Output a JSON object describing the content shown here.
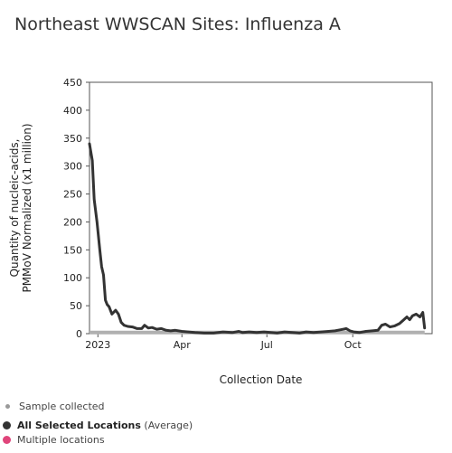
{
  "chart_data": {
    "type": "line",
    "title": "Northeast WWSCAN Sites: Influenza A",
    "xlabel": "Collection Date",
    "ylabel_lines": [
      "Quantity of nucleic-acids,",
      "PMMoV Normalized (x1 million)"
    ],
    "ylim": [
      0,
      450
    ],
    "yticks": [
      0,
      50,
      100,
      150,
      200,
      250,
      300,
      350,
      400,
      450
    ],
    "xlim": [
      "2022-12-23",
      "2023-12-25"
    ],
    "xticks": [
      {
        "date": "2023-01-01",
        "label": "2023"
      },
      {
        "date": "2023-04-01",
        "label": "Apr"
      },
      {
        "date": "2023-07-01",
        "label": "Jul"
      },
      {
        "date": "2023-10-01",
        "label": "Oct"
      }
    ],
    "grid": false,
    "series": [
      {
        "name": "All Selected Locations",
        "color": "#333333",
        "points": [
          [
            "2022-12-23",
            340
          ],
          [
            "2022-12-24",
            330
          ],
          [
            "2022-12-26",
            310
          ],
          [
            "2022-12-28",
            240
          ],
          [
            "2022-12-31",
            200
          ],
          [
            "2023-01-03",
            150
          ],
          [
            "2023-01-05",
            120
          ],
          [
            "2023-01-07",
            105
          ],
          [
            "2023-01-09",
            60
          ],
          [
            "2023-01-11",
            52
          ],
          [
            "2023-01-13",
            48
          ],
          [
            "2023-01-16",
            35
          ],
          [
            "2023-01-20",
            42
          ],
          [
            "2023-01-23",
            35
          ],
          [
            "2023-01-26",
            20
          ],
          [
            "2023-01-29",
            15
          ],
          [
            "2023-02-02",
            13
          ],
          [
            "2023-02-07",
            12
          ],
          [
            "2023-02-12",
            9
          ],
          [
            "2023-02-17",
            9
          ],
          [
            "2023-02-20",
            15
          ],
          [
            "2023-02-24",
            10
          ],
          [
            "2023-02-28",
            11
          ],
          [
            "2023-03-05",
            8
          ],
          [
            "2023-03-10",
            9
          ],
          [
            "2023-03-15",
            6
          ],
          [
            "2023-03-20",
            5
          ],
          [
            "2023-03-25",
            6
          ],
          [
            "2023-04-01",
            4
          ],
          [
            "2023-04-08",
            3
          ],
          [
            "2023-04-15",
            2
          ],
          [
            "2023-04-25",
            1
          ],
          [
            "2023-05-05",
            1
          ],
          [
            "2023-05-15",
            3
          ],
          [
            "2023-05-25",
            2
          ],
          [
            "2023-06-01",
            4
          ],
          [
            "2023-06-05",
            2
          ],
          [
            "2023-06-12",
            3
          ],
          [
            "2023-06-20",
            2
          ],
          [
            "2023-06-28",
            3
          ],
          [
            "2023-07-05",
            2
          ],
          [
            "2023-07-12",
            1
          ],
          [
            "2023-07-20",
            3
          ],
          [
            "2023-07-28",
            2
          ],
          [
            "2023-08-05",
            1
          ],
          [
            "2023-08-12",
            3
          ],
          [
            "2023-08-20",
            2
          ],
          [
            "2023-08-28",
            3
          ],
          [
            "2023-09-05",
            4
          ],
          [
            "2023-09-12",
            5
          ],
          [
            "2023-09-18",
            7
          ],
          [
            "2023-09-24",
            9
          ],
          [
            "2023-09-28",
            5
          ],
          [
            "2023-10-02",
            3
          ],
          [
            "2023-10-08",
            2
          ],
          [
            "2023-10-15",
            4
          ],
          [
            "2023-10-22",
            5
          ],
          [
            "2023-10-28",
            6
          ],
          [
            "2023-11-01",
            15
          ],
          [
            "2023-11-05",
            17
          ],
          [
            "2023-11-10",
            12
          ],
          [
            "2023-11-15",
            14
          ],
          [
            "2023-11-20",
            18
          ],
          [
            "2023-11-24",
            24
          ],
          [
            "2023-11-28",
            30
          ],
          [
            "2023-12-01",
            25
          ],
          [
            "2023-12-04",
            32
          ],
          [
            "2023-12-08",
            35
          ],
          [
            "2023-12-12",
            30
          ],
          [
            "2023-12-15",
            38
          ],
          [
            "2023-12-17",
            10
          ]
        ]
      }
    ],
    "samples_band": {
      "color": "#b0b0b0",
      "from": "2022-12-23",
      "to": "2023-12-17",
      "value": 2
    }
  },
  "legend": [
    {
      "label": "Sample collected",
      "suffix": "",
      "bold": false,
      "color": "#999999",
      "size": "small"
    },
    {
      "label": "All Selected Locations",
      "suffix": " (Average)",
      "bold": true,
      "color": "#333333",
      "size": "large"
    },
    {
      "label": "Multiple locations",
      "suffix": "",
      "bold": false,
      "color": "#e0457b",
      "size": "large"
    }
  ]
}
